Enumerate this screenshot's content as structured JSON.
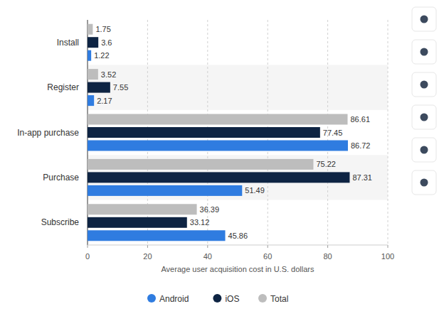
{
  "chart_data": {
    "type": "bar",
    "orientation": "horizontal",
    "categories": [
      "Install",
      "Register",
      "In-app purchase",
      "Purchase",
      "Subscribe"
    ],
    "series": [
      {
        "name": "Android",
        "color": "#2f7ce0",
        "values": [
          1.22,
          2.17,
          86.72,
          51.49,
          45.86
        ]
      },
      {
        "name": "iOS",
        "color": "#0e2443",
        "values": [
          3.6,
          7.55,
          77.45,
          87.31,
          33.12
        ]
      },
      {
        "name": "Total",
        "color": "#bdbdbd",
        "values": [
          1.75,
          3.52,
          86.61,
          75.22,
          36.39
        ]
      }
    ],
    "x_label": "Average user acquisition cost in U.S. dollars",
    "xlim": [
      0,
      100
    ],
    "xticks": [
      0,
      20,
      40,
      60,
      80,
      100
    ],
    "grid": true,
    "data_labels": true,
    "legend": "bottom"
  }
}
